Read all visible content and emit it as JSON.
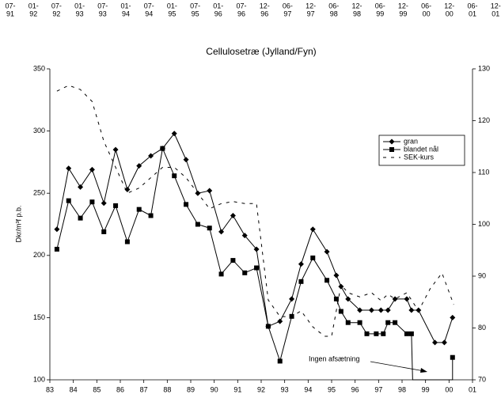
{
  "top_strip": [
    {
      "top": "07-",
      "bottom": "91"
    },
    {
      "top": "01-",
      "bottom": "92"
    },
    {
      "top": "07-",
      "bottom": "92"
    },
    {
      "top": "01-",
      "bottom": "93"
    },
    {
      "top": "07-",
      "bottom": "93"
    },
    {
      "top": "01-",
      "bottom": "94"
    },
    {
      "top": "07-",
      "bottom": "94"
    },
    {
      "top": "01-",
      "bottom": "95"
    },
    {
      "top": "07-",
      "bottom": "95"
    },
    {
      "top": "01-",
      "bottom": "96"
    },
    {
      "top": "07-",
      "bottom": "96"
    },
    {
      "top": "12-",
      "bottom": "96"
    },
    {
      "top": "06-",
      "bottom": "97"
    },
    {
      "top": "12-",
      "bottom": "97"
    },
    {
      "top": "06-",
      "bottom": "98"
    },
    {
      "top": "12-",
      "bottom": "98"
    },
    {
      "top": "06-",
      "bottom": "99"
    },
    {
      "top": "12-",
      "bottom": "99"
    },
    {
      "top": "06-",
      "bottom": "00"
    },
    {
      "top": "12-",
      "bottom": "00"
    },
    {
      "top": "06-",
      "bottom": "01"
    },
    {
      "top": "12-",
      "bottom": "01"
    }
  ],
  "chart_data": {
    "type": "line",
    "title": "Cellulosetræ (Jylland/Fyn)",
    "y_label": "Dkr/m³f p.b.",
    "annotation": "Ingen afsætning",
    "xlim": [
      83,
      101
    ],
    "xticks": [
      83,
      84,
      85,
      86,
      87,
      88,
      89,
      90,
      91,
      92,
      93,
      94,
      95,
      96,
      97,
      98,
      99,
      {
        "value": 100,
        "label": "00"
      },
      {
        "value": 101,
        "label": "01"
      }
    ],
    "ylim": [
      100,
      350
    ],
    "yticks": [
      100,
      150,
      200,
      250,
      300,
      350
    ],
    "y2lim": [
      70,
      130
    ],
    "y2ticks": [
      70,
      80,
      90,
      100,
      110,
      120,
      130
    ],
    "legend": "upper right",
    "grid": false,
    "series": [
      {
        "name": "gran",
        "color": "#000000",
        "marker": "diamond",
        "x": [
          83.3,
          83.8,
          84.3,
          84.8,
          85.3,
          85.8,
          86.3,
          86.8,
          87.3,
          87.8,
          88.3,
          88.8,
          89.3,
          89.8,
          90.3,
          90.8,
          91.3,
          91.8,
          92.3,
          92.8,
          93.3,
          93.7,
          94.2,
          94.8,
          95.2,
          95.4,
          95.7,
          96.2,
          96.7,
          97.1,
          97.4,
          97.7,
          98.2,
          98.4,
          98.7,
          99.4,
          99.8,
          100.15
        ],
        "values": [
          221,
          270,
          255,
          269,
          242,
          285,
          253,
          272,
          280,
          286,
          298,
          277,
          250,
          252,
          219,
          232,
          216,
          205,
          143,
          147,
          165,
          193,
          221,
          203,
          184,
          175,
          165,
          156,
          156,
          156,
          156,
          165,
          165,
          156,
          156,
          130,
          130,
          150
        ]
      },
      {
        "name": "blandet nål",
        "color": "#000000",
        "marker": "square",
        "x": [
          83.3,
          83.8,
          84.3,
          84.8,
          85.3,
          85.8,
          86.3,
          86.8,
          87.3,
          87.8,
          88.3,
          88.8,
          89.3,
          89.8,
          90.3,
          90.8,
          91.3,
          91.8,
          92.3,
          92.8,
          93.3,
          93.7,
          94.2,
          94.8,
          95.2,
          95.4,
          95.7,
          96.2,
          96.5,
          96.9,
          97.2,
          97.4,
          97.7,
          98.2,
          98.4,
          98.45,
          100.15,
          100.15
        ],
        "values": [
          205,
          244,
          230,
          243,
          219,
          240,
          211,
          237,
          232,
          286,
          264,
          241,
          225,
          222,
          185,
          196,
          186,
          190,
          143,
          115,
          151,
          179,
          198,
          180,
          165,
          155,
          146,
          146,
          137,
          137,
          137,
          146,
          146,
          137,
          137,
          100,
          100,
          118
        ]
      },
      {
        "name": "SEK-kurs",
        "color": "#000000",
        "axis": "y2",
        "dashed": true,
        "x": [
          83.3,
          83.8,
          84.3,
          84.8,
          85.3,
          85.8,
          86.3,
          86.8,
          87.3,
          87.8,
          88.3,
          88.8,
          89.3,
          89.8,
          90.3,
          90.8,
          91.3,
          91.8,
          92.3,
          92.8,
          93.3,
          93.7,
          94.2,
          94.7,
          95.0,
          95.4,
          95.7,
          96.2,
          96.7,
          97.1,
          97.4,
          97.7,
          98.2,
          98.7,
          99.2,
          99.7,
          100.2
        ],
        "values": [
          125.7,
          126.8,
          126,
          123.7,
          116,
          111,
          106,
          107,
          109,
          111,
          111,
          109,
          106,
          103,
          104,
          104.4,
          104,
          104,
          85.4,
          82.2,
          82.2,
          83.3,
          80.2,
          78.4,
          78.4,
          88.3,
          86.8,
          86,
          86.8,
          85.3,
          86.5,
          85.6,
          86.8,
          83.3,
          87.6,
          90.6,
          84.5
        ]
      }
    ]
  }
}
